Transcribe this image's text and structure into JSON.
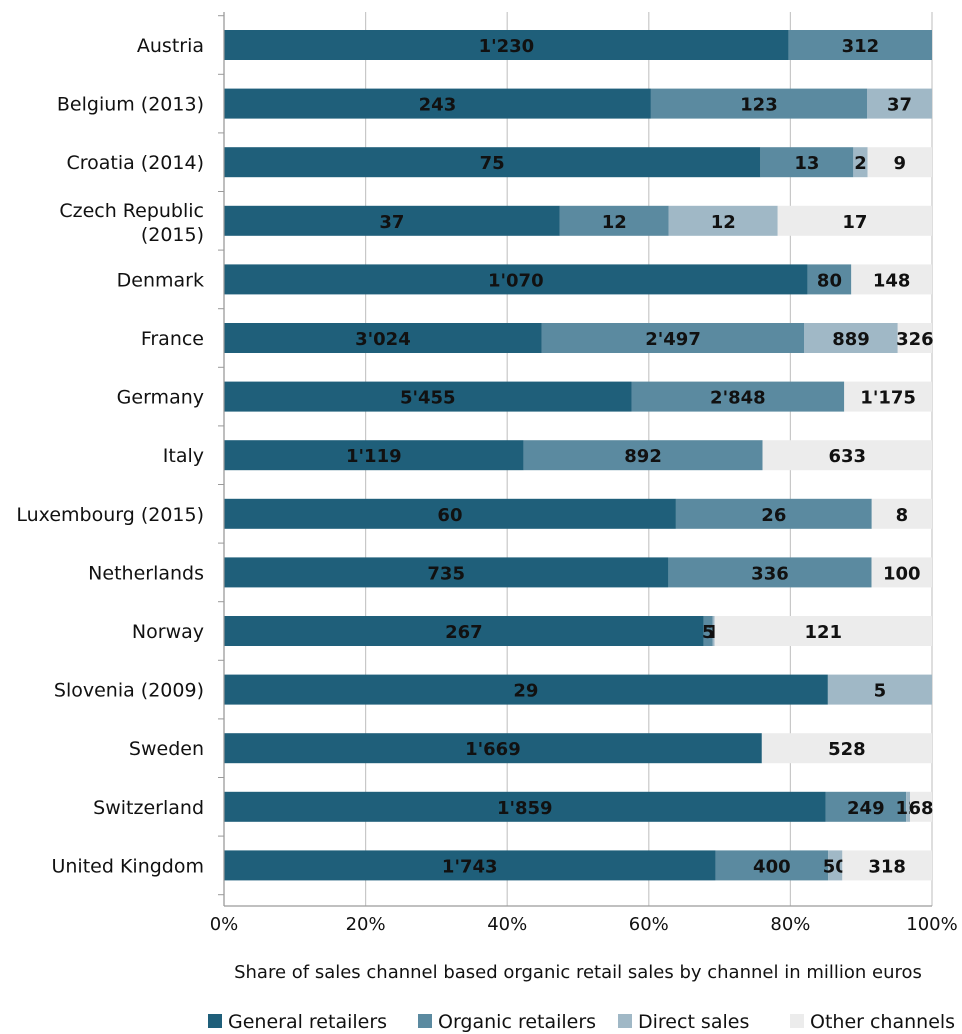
{
  "chart_data": {
    "type": "bar",
    "orientation": "horizontal",
    "stacked": "percent",
    "title": "",
    "xlabel": "Share of sales channel based organic retail sales by channel in million euros",
    "ylabel": "",
    "xlim": [
      0,
      100
    ],
    "xticks": [
      "0%",
      "20%",
      "40%",
      "60%",
      "80%",
      "100%"
    ],
    "grid": true,
    "legend_position": "bottom",
    "colors": {
      "general": "#1f5f7a",
      "organic": "#5b8aa0",
      "direct": "#a0b8c6",
      "other": "#ececec"
    },
    "series_keys": [
      "general",
      "organic",
      "direct",
      "other"
    ],
    "series": [
      {
        "key": "general",
        "name": "General retailers"
      },
      {
        "key": "organic",
        "name": "Organic retailers"
      },
      {
        "key": "direct",
        "name": "Direct sales"
      },
      {
        "key": "other",
        "name": "Other channels"
      }
    ],
    "categories": [
      "Austria",
      "Belgium (2013)",
      "Croatia (2014)",
      "Czech Republic (2015)",
      "Denmark",
      "France",
      "Germany",
      "Italy",
      "Luxembourg (2015)",
      "Netherlands",
      "Norway",
      "Slovenia (2009)",
      "Sweden",
      "Switzerland",
      "United Kingdom"
    ],
    "rows": [
      {
        "label": "Austria",
        "general": 1230,
        "organic": 312,
        "direct": null,
        "other": null,
        "labels": {
          "general": "1'230",
          "organic": "312"
        }
      },
      {
        "label": "Belgium (2013)",
        "general": 243,
        "organic": 123,
        "direct": 37,
        "other": null,
        "labels": {
          "general": "243",
          "organic": "123",
          "direct": "37"
        }
      },
      {
        "label": "Croatia (2014)",
        "general": 75,
        "organic": 13,
        "direct": 2,
        "other": 9,
        "labels": {
          "general": "75",
          "organic": "13",
          "direct": "2",
          "other": "9"
        }
      },
      {
        "label": "Czech Republic (2015)",
        "general": 37,
        "organic": 12,
        "direct": 12,
        "other": 17,
        "labels": {
          "general": "37",
          "organic": "12",
          "direct": "12",
          "other": "17"
        }
      },
      {
        "label": "Denmark",
        "general": 1070,
        "organic": 80,
        "direct": null,
        "other": 148,
        "labels": {
          "general": "1'070",
          "organic": "80",
          "other": "148"
        }
      },
      {
        "label": "France",
        "general": 3024,
        "organic": 2497,
        "direct": 889,
        "other": 326,
        "labels": {
          "general": "3'024",
          "organic": "2'497",
          "direct": "889",
          "other": "326"
        }
      },
      {
        "label": "Germany",
        "general": 5455,
        "organic": 2848,
        "direct": null,
        "other": 1175,
        "labels": {
          "general": "5'455",
          "organic": "2'848",
          "other": "1'175"
        }
      },
      {
        "label": "Italy",
        "general": 1119,
        "organic": 892,
        "direct": null,
        "other": 633,
        "labels": {
          "general": "1'119",
          "organic": "892",
          "other": "633"
        }
      },
      {
        "label": "Luxembourg (2015)",
        "general": 60,
        "organic": 26,
        "direct": null,
        "other": 8,
        "labels": {
          "general": "60",
          "organic": "26",
          "other": "8"
        }
      },
      {
        "label": "Netherlands",
        "general": 735,
        "organic": 336,
        "direct": null,
        "other": 100,
        "labels": {
          "general": "735",
          "organic": "336",
          "other": "100"
        }
      },
      {
        "label": "Norway",
        "general": 267,
        "organic": 5,
        "direct": 1,
        "other": 121,
        "labels": {
          "general": "267",
          "organic": "5",
          "direct": "1",
          "other": "121"
        }
      },
      {
        "label": "Slovenia (2009)",
        "general": 29,
        "organic": null,
        "direct": 5,
        "other": null,
        "labels": {
          "general": "29",
          "direct": "5"
        }
      },
      {
        "label": "Sweden",
        "general": 1669,
        "organic": null,
        "direct": null,
        "other": 528,
        "labels": {
          "general": "1'669",
          "other": "528"
        }
      },
      {
        "label": "Switzerland",
        "general": 1859,
        "organic": 249,
        "direct": 12,
        "other": 68,
        "labels": {
          "general": "1'859",
          "organic": "249",
          "direct": "12",
          "other": "68"
        }
      },
      {
        "label": "United Kingdom",
        "general": 1743,
        "organic": 400,
        "direct": 50,
        "other": 318,
        "labels": {
          "general": "1'743",
          "organic": "400",
          "direct": "50",
          "other": "318"
        }
      }
    ]
  }
}
